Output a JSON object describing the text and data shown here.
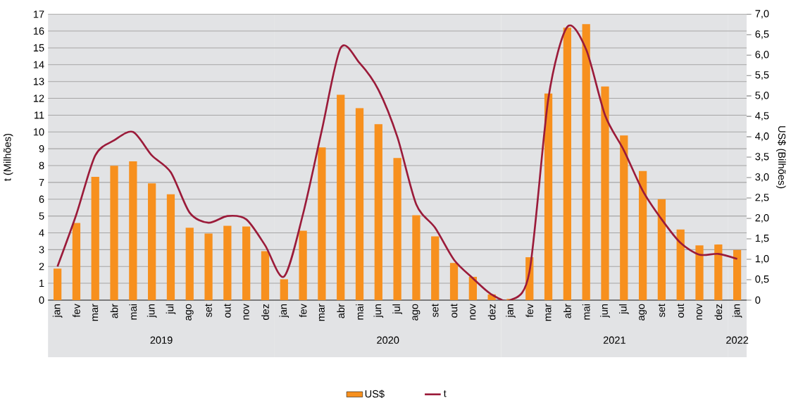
{
  "chart_data": {
    "type": "bar",
    "ylabel": "t (Milhões)",
    "y2label": "US$ (Bilhões)",
    "x": [
      "2019-01",
      "2019-02",
      "2019-03",
      "2019-04",
      "2019-05",
      "2019-06",
      "2019-07",
      "2019-08",
      "2019-09",
      "2019-10",
      "2019-11",
      "2019-12",
      "2020-01",
      "2020-02",
      "2020-03",
      "2020-04",
      "2020-05",
      "2020-06",
      "2020-07",
      "2020-08",
      "2020-09",
      "2020-10",
      "2020-11",
      "2020-12",
      "2021-01",
      "2021-02",
      "2021-03",
      "2021-04",
      "2021-05",
      "2021-06",
      "2021-07",
      "2021-08",
      "2021-09",
      "2021-10",
      "2021-11",
      "2021-12",
      "2022-01"
    ],
    "xlim": [
      "2018-12-16",
      "2022-01-16"
    ],
    "xticks": [
      {
        "value": "2019-01",
        "label": "jan"
      },
      {
        "value": "2019-02",
        "label": "fev"
      },
      {
        "value": "2019-03",
        "label": "mar"
      },
      {
        "value": "2019-04",
        "label": "abr"
      },
      {
        "value": "2019-05",
        "label": "mai"
      },
      {
        "value": "2019-06",
        "label": "jun"
      },
      {
        "value": "2019-07",
        "label": "jul"
      },
      {
        "value": "2019-08",
        "label": "ago"
      },
      {
        "value": "2019-09",
        "label": "set"
      },
      {
        "value": "2019-10",
        "label": "out"
      },
      {
        "value": "2019-11",
        "label": "nov"
      },
      {
        "value": "2019-12",
        "label": "dez"
      },
      {
        "value": "2020-01",
        "label": "jan"
      },
      {
        "value": "2020-02",
        "label": "fev"
      },
      {
        "value": "2020-03",
        "label": "mar"
      },
      {
        "value": "2020-04",
        "label": "abr"
      },
      {
        "value": "2020-05",
        "label": "mai"
      },
      {
        "value": "2020-06",
        "label": "jun"
      },
      {
        "value": "2020-07",
        "label": "jul"
      },
      {
        "value": "2020-08",
        "label": "ago"
      },
      {
        "value": "2020-09",
        "label": "set"
      },
      {
        "value": "2020-10",
        "label": "out"
      },
      {
        "value": "2020-11",
        "label": "nov"
      },
      {
        "value": "2020-12",
        "label": "dez"
      },
      {
        "value": "2021-01",
        "label": "jan"
      },
      {
        "value": "2021-02",
        "label": "fev"
      },
      {
        "value": "2021-03",
        "label": "mar"
      },
      {
        "value": "2021-04",
        "label": "abr"
      },
      {
        "value": "2021-05",
        "label": "mai"
      },
      {
        "value": "2021-06",
        "label": "jun"
      },
      {
        "value": "2021-07",
        "label": "jul"
      },
      {
        "value": "2021-08",
        "label": "ago"
      },
      {
        "value": "2021-09",
        "label": "set"
      },
      {
        "value": "2021-10",
        "label": "out"
      },
      {
        "value": "2021-11",
        "label": "nov"
      },
      {
        "value": "2021-12",
        "label": "dez"
      },
      {
        "value": "2022-01",
        "label": "jan"
      }
    ],
    "ylim": [
      0,
      17
    ],
    "yticks": [
      0,
      1,
      2,
      3,
      4,
      5,
      6,
      7,
      8,
      9,
      10,
      11,
      12,
      13,
      14,
      15,
      16,
      17
    ],
    "y2lim": [
      0,
      7
    ],
    "y2ticks": [
      0,
      {
        "value": 0.5,
        "label": "0,5"
      },
      {
        "value": 1,
        "label": "1,0"
      },
      {
        "value": 1.5,
        "label": "1,5"
      },
      {
        "value": 2,
        "label": "2,0"
      },
      {
        "value": 2.5,
        "label": "2,5"
      },
      {
        "value": 3,
        "label": "3,0"
      },
      {
        "value": 3.5,
        "label": "3,5"
      },
      {
        "value": 4,
        "label": "4,0"
      },
      {
        "value": 4.5,
        "label": "4,5"
      },
      {
        "value": 5,
        "label": "5,0"
      },
      {
        "value": 5.5,
        "label": "5,5"
      },
      {
        "value": 6,
        "label": "6,0"
      },
      {
        "value": 6.5,
        "label": "6,5"
      },
      {
        "value": 7,
        "label": "7,0"
      }
    ],
    "grid": "y",
    "legend": "bottom",
    "bands": [
      {
        "axis": "x",
        "from": "2018-12-16",
        "to": "2019-12-16",
        "label": "2019",
        "color": "#e2e3e5"
      },
      {
        "axis": "x",
        "from": "2019-12-16",
        "to": "2020-12-16",
        "label": "2020",
        "color": "#e2e3e5"
      },
      {
        "axis": "x",
        "from": "2020-12-16",
        "to": "2021-12-16",
        "label": "2021",
        "color": "#e2e3e5"
      },
      {
        "axis": "x",
        "from": "2021-12-16",
        "to": "2022-01-16",
        "label": "2022",
        "color": "#e2e3e5"
      }
    ],
    "series": [
      {
        "name": "US$",
        "axis": "y2",
        "color": "#f7901e",
        "values": [
          0.77,
          1.89,
          3.02,
          3.29,
          3.4,
          2.86,
          2.59,
          1.77,
          1.63,
          1.82,
          1.8,
          1.2,
          0.51,
          1.7,
          3.74,
          5.03,
          4.7,
          4.31,
          3.48,
          2.08,
          1.56,
          0.91,
          0.57,
          0.14,
          0.03,
          1.05,
          5.06,
          6.67,
          6.76,
          5.23,
          4.03,
          3.16,
          2.47,
          1.73,
          1.34,
          1.36,
          1.23
        ]
      },
      {
        "name": "t",
        "type": "line",
        "color": "#9b1b3a",
        "values": [
          2.0,
          5.1,
          8.6,
          9.5,
          10.0,
          8.6,
          7.6,
          5.2,
          4.6,
          5.0,
          4.8,
          3.25,
          1.4,
          5.1,
          10.1,
          15.0,
          14.1,
          12.5,
          9.7,
          5.7,
          4.3,
          2.4,
          1.3,
          0.33,
          0.0,
          1.7,
          12.0,
          16.25,
          14.9,
          11.0,
          8.9,
          6.5,
          4.8,
          3.4,
          2.7,
          2.75,
          2.45
        ]
      }
    ]
  }
}
